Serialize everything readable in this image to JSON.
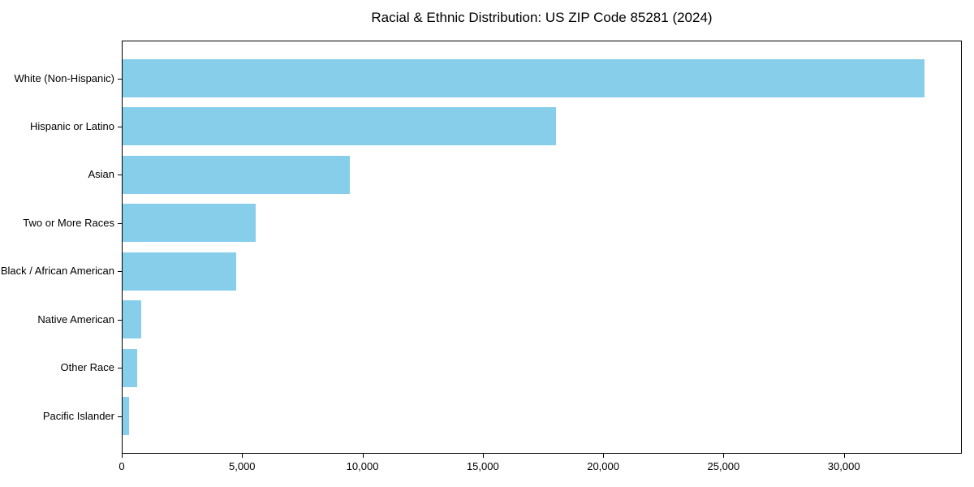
{
  "chart_data": {
    "type": "bar",
    "orientation": "horizontal",
    "title": "Racial & Ethnic Distribution: US ZIP Code 85281 (2024)",
    "categories": [
      "White (Non-Hispanic)",
      "Hispanic or Latino",
      "Asian",
      "Two or More Races",
      "Black / African American",
      "Native American",
      "Other Race",
      "Pacific Islander"
    ],
    "values": [
      33300,
      18000,
      9450,
      5530,
      4720,
      780,
      620,
      280
    ],
    "xlabel": "",
    "ylabel": "",
    "xlim": [
      0,
      34900
    ],
    "x_ticks": [
      0,
      5000,
      10000,
      15000,
      20000,
      25000,
      30000
    ],
    "x_tick_labels": [
      "0",
      "5,000",
      "10,000",
      "15,000",
      "20,000",
      "25,000",
      "30,000"
    ],
    "bar_color": "#87CEEB",
    "spine_color": "#000000",
    "grid": false,
    "legend": null
  }
}
